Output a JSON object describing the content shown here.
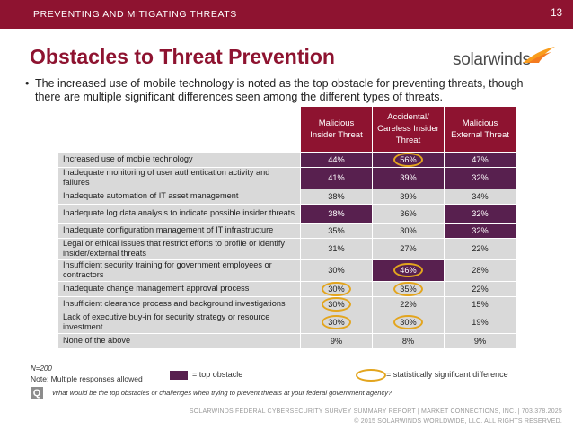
{
  "header": {
    "section": "PREVENTING AND MITIGATING THREATS",
    "page_number": "13"
  },
  "title": "Obstacles to Threat Prevention",
  "logo": {
    "text": "solarwinds"
  },
  "bullet": "The increased use of mobile technology is noted as the top obstacle for preventing threats, though there are multiple significant differences seen among the different types of threats.",
  "table": {
    "columns": [
      "Malicious Insider Threat",
      "Accidental/ Careless Insider Threat",
      "Malicious External Threat"
    ],
    "rows": [
      {
        "label": "Increased use of mobile technology",
        "values": [
          "44%",
          "56%",
          "47%"
        ],
        "top": [
          true,
          true,
          true
        ],
        "sig": [
          false,
          true,
          false
        ]
      },
      {
        "label": "Inadequate monitoring of user authentication activity and failures",
        "values": [
          "41%",
          "39%",
          "32%"
        ],
        "top": [
          true,
          true,
          true
        ],
        "sig": [
          false,
          false,
          false
        ]
      },
      {
        "label": "Inadequate automation of IT asset management",
        "values": [
          "38%",
          "39%",
          "34%"
        ],
        "top": [
          false,
          false,
          false
        ],
        "sig": [
          false,
          false,
          false
        ]
      },
      {
        "label": "Inadequate log data analysis to indicate possible insider threats",
        "values": [
          "38%",
          "36%",
          "32%"
        ],
        "top": [
          true,
          false,
          true
        ],
        "sig": [
          false,
          false,
          false
        ]
      },
      {
        "label": "Inadequate configuration management of IT infrastructure",
        "values": [
          "35%",
          "30%",
          "32%"
        ],
        "top": [
          false,
          false,
          true
        ],
        "sig": [
          false,
          false,
          false
        ]
      },
      {
        "label": "Legal or ethical issues that restrict efforts to profile or identify insider/external threats",
        "values": [
          "31%",
          "27%",
          "22%"
        ],
        "top": [
          false,
          false,
          false
        ],
        "sig": [
          false,
          false,
          false
        ]
      },
      {
        "label": "Insufficient security training for government employees or contractors",
        "values": [
          "30%",
          "46%",
          "28%"
        ],
        "top": [
          false,
          true,
          false
        ],
        "sig": [
          false,
          true,
          false
        ]
      },
      {
        "label": "Inadequate change management approval process",
        "values": [
          "30%",
          "35%",
          "22%"
        ],
        "top": [
          false,
          false,
          false
        ],
        "sig": [
          true,
          true,
          false
        ]
      },
      {
        "label": "Insufficient clearance process and background investigations",
        "values": [
          "30%",
          "22%",
          "15%"
        ],
        "top": [
          false,
          false,
          false
        ],
        "sig": [
          true,
          false,
          false
        ]
      },
      {
        "label": "Lack of executive buy-in for security strategy or resource investment",
        "values": [
          "30%",
          "30%",
          "19%"
        ],
        "top": [
          false,
          false,
          false
        ],
        "sig": [
          true,
          true,
          false
        ]
      },
      {
        "label": "None of the above",
        "values": [
          "9%",
          "8%",
          "9%"
        ],
        "top": [
          false,
          false,
          false
        ],
        "sig": [
          false,
          false,
          false
        ]
      }
    ]
  },
  "notes": {
    "n": "N=200",
    "multiple": "Note: Multiple responses allowed"
  },
  "legend": {
    "top_obstacle": "= top obstacle",
    "significant": "= statistically significant difference"
  },
  "question": {
    "icon": "Q",
    "text": "What would be the top obstacles or challenges when trying to prevent threats at your federal government agency?"
  },
  "footer": {
    "line1": "SOLARWINDS FEDERAL CYBERSECURITY SURVEY SUMMARY REPORT  |  MARKET CONNECTIONS, INC.  |  703.378.2025",
    "line2": "© 2015 SOLARWINDS WORLDWIDE, LLC. ALL RIGHTS RESERVED."
  },
  "colors": {
    "brand": "#8e1330",
    "top_cell": "#58204f",
    "light_cell": "#d9d9d9",
    "ring": "#e3a51e",
    "logo_flame": "#f99d1c"
  }
}
